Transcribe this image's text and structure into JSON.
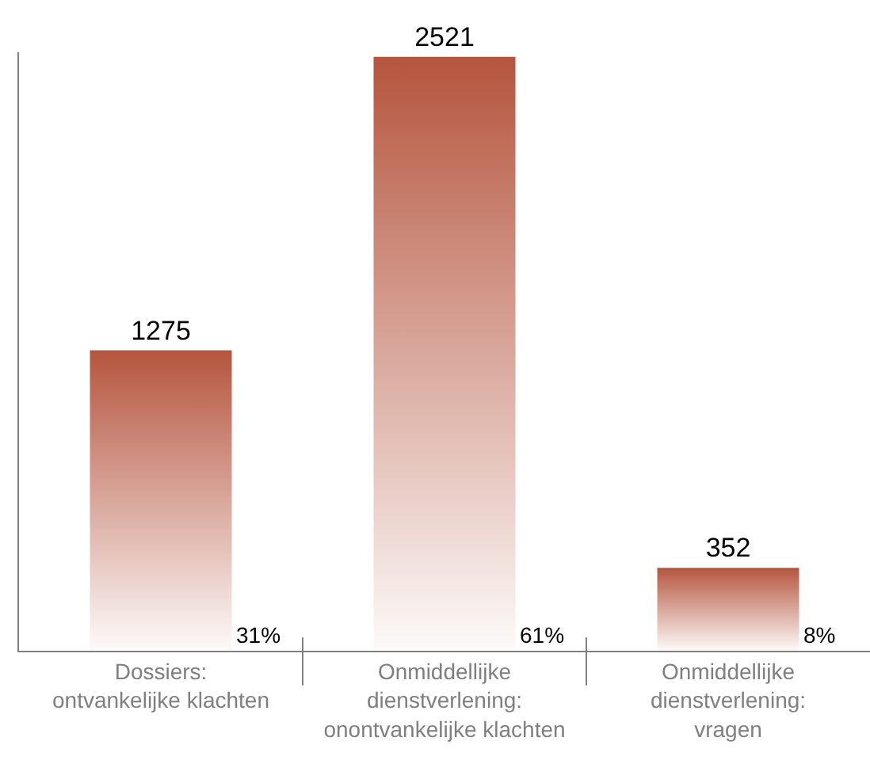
{
  "chart_data": {
    "type": "bar",
    "categories": [
      "Dossiers: ontvankelijke klachten",
      "Onmiddellijke dienstverlening: onontvankelijke klachten",
      "Onmiddellijke dienstverlening: vragen"
    ],
    "values": [
      1275,
      2521,
      352
    ],
    "color": "#b5553e",
    "data_labels": true,
    "ylim": [
      0,
      2540
    ],
    "tick_labels": "x",
    "annotations": [
      "31%",
      "61%",
      "8%"
    ]
  }
}
